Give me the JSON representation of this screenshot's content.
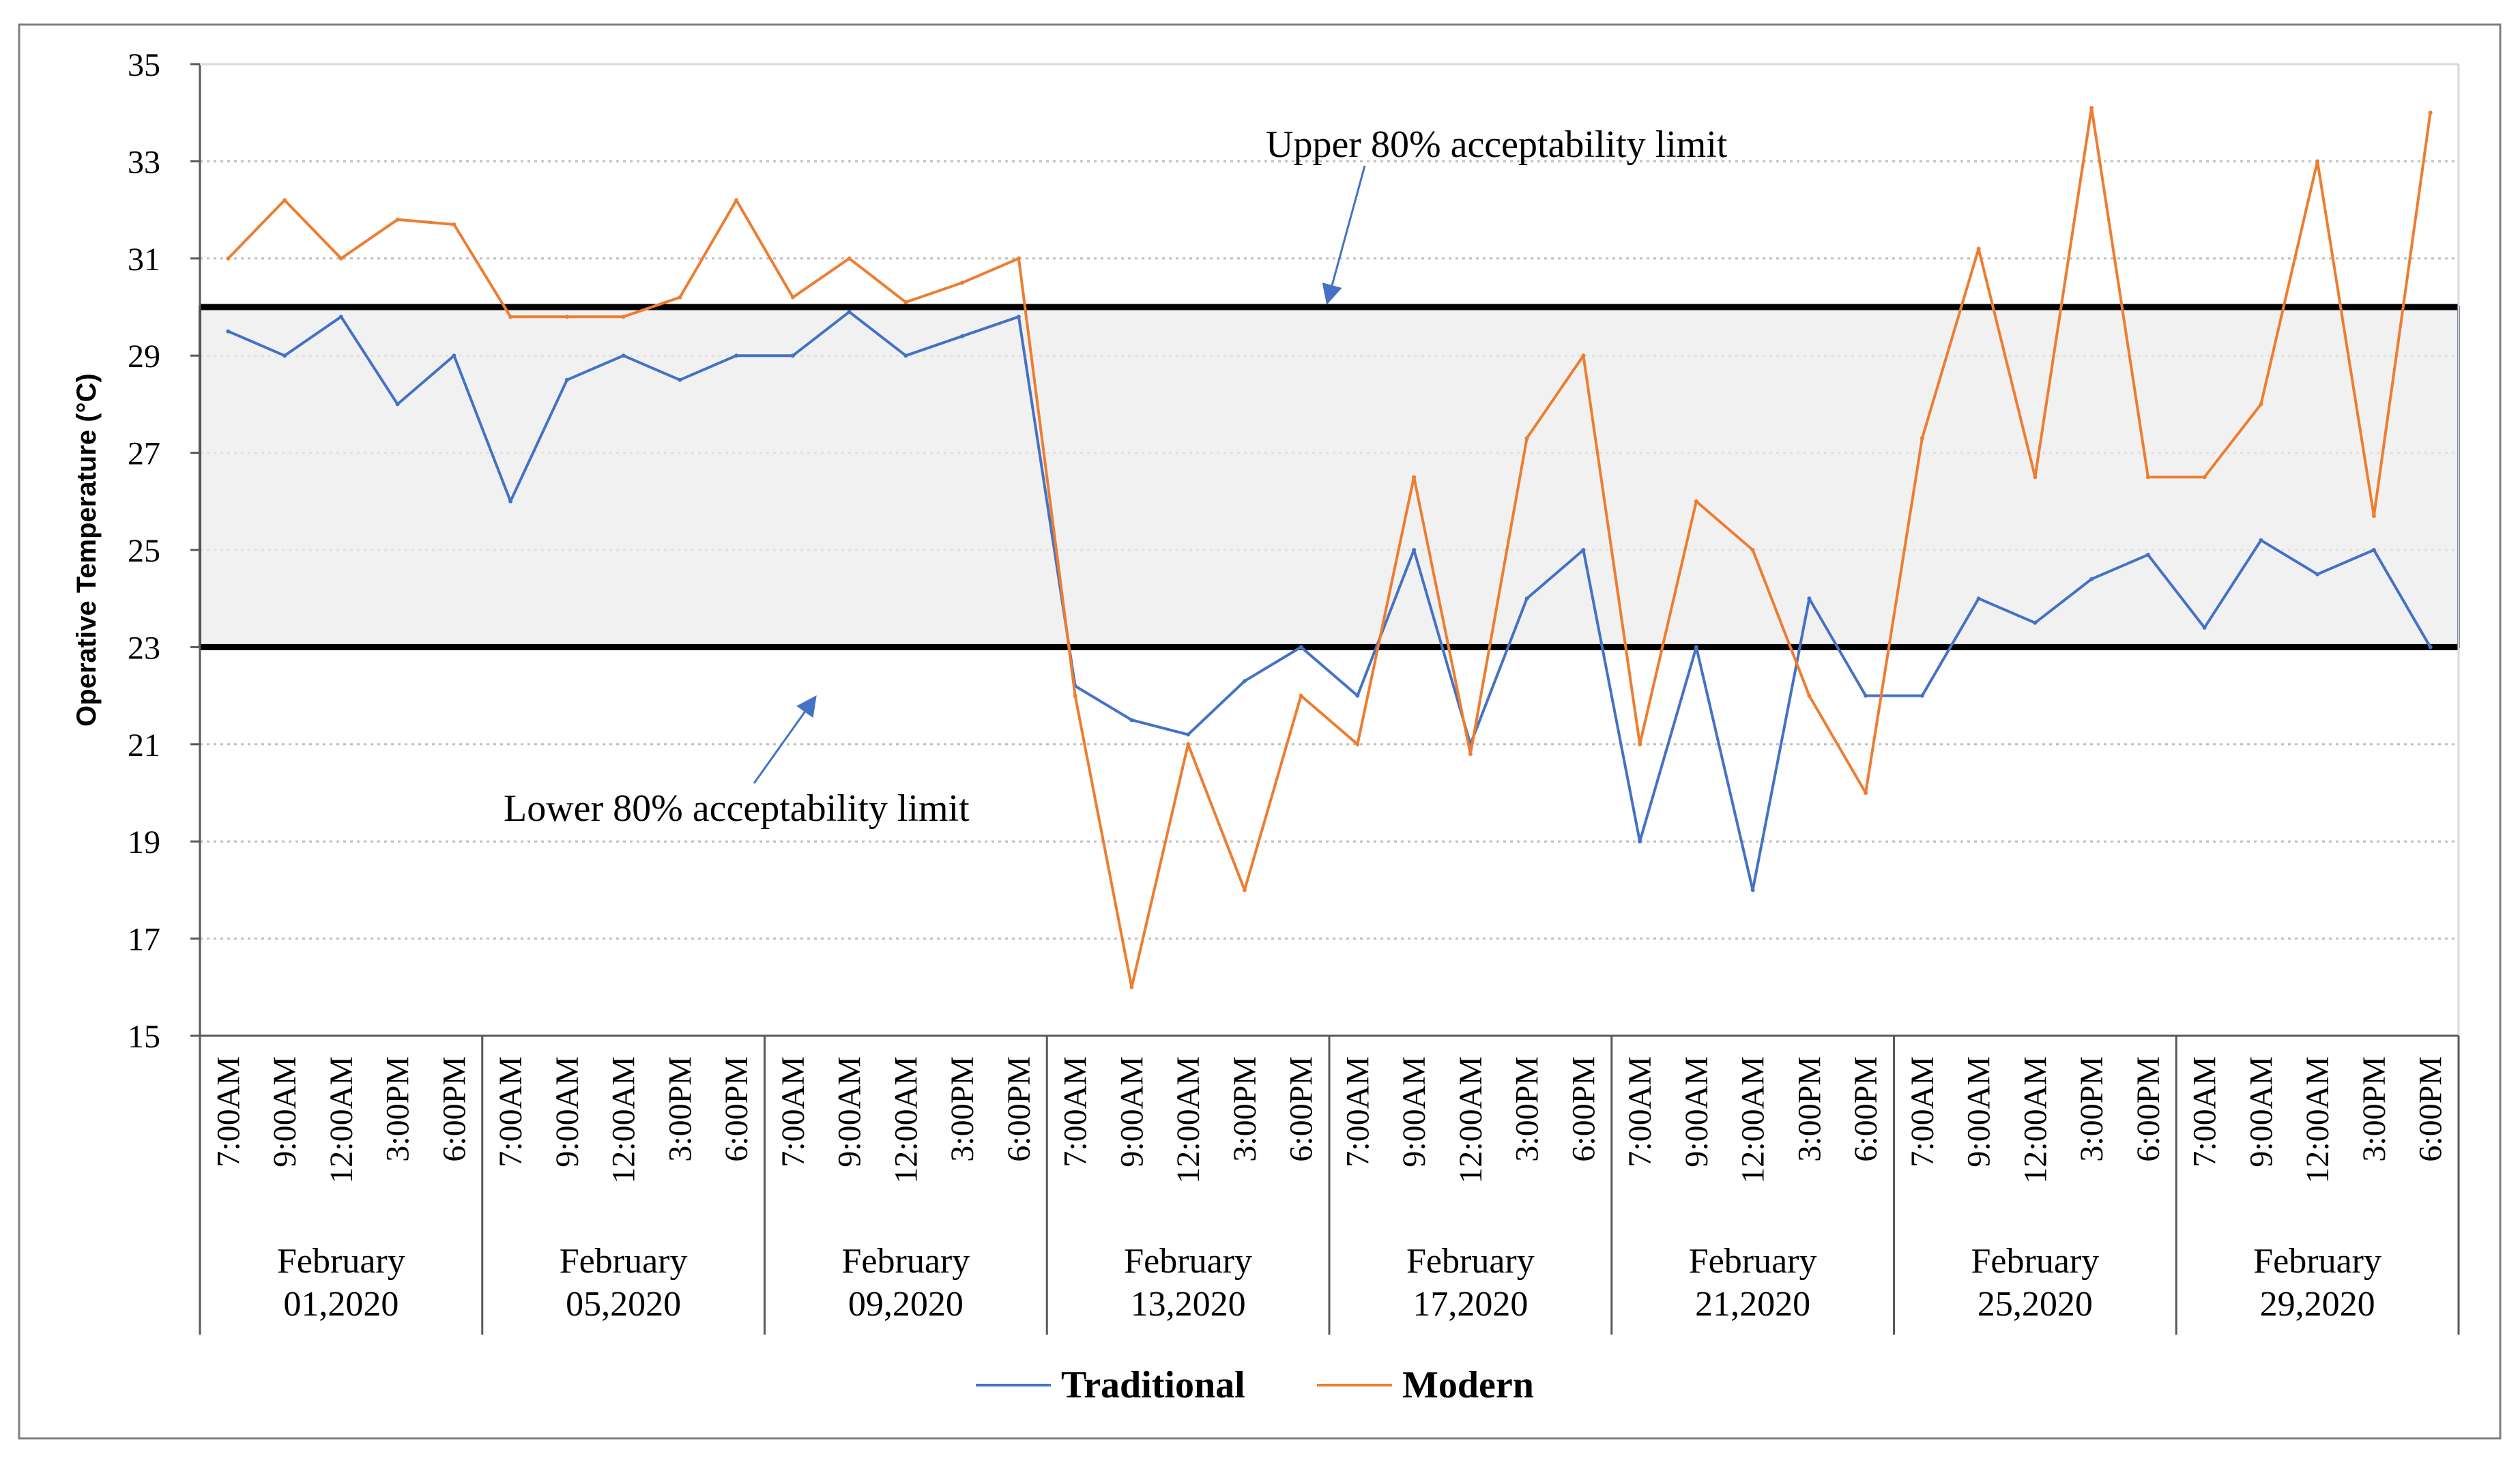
{
  "chart_data": {
    "type": "line",
    "title": "",
    "xlabel": "",
    "ylabel": "Operative Temperature (°C)",
    "ylim": [
      15,
      35
    ],
    "yticks": [
      "15",
      "17",
      "19",
      "21",
      "23",
      "25",
      "27",
      "29",
      "31",
      "33",
      "35"
    ],
    "grid": "horizontal dotted",
    "times": [
      "7:00AM",
      "9:00AM",
      "12:00AM",
      "3:00PM",
      "6:00PM"
    ],
    "groups": [
      {
        "line1": "February",
        "line2": "01,2020"
      },
      {
        "line1": "February",
        "line2": "05,2020"
      },
      {
        "line1": "February",
        "line2": "09,2020"
      },
      {
        "line1": "February",
        "line2": "13,2020"
      },
      {
        "line1": "February",
        "line2": "17,2020"
      },
      {
        "line1": "February",
        "line2": "21,2020"
      },
      {
        "line1": "February",
        "line2": "25,2020"
      },
      {
        "line1": "February",
        "line2": "29,2020"
      }
    ],
    "series": [
      {
        "name": "Traditional",
        "color": "#4472C4",
        "values": [
          29.5,
          29.0,
          29.8,
          28.0,
          29.0,
          26.0,
          28.5,
          29.0,
          28.5,
          29.0,
          29.0,
          29.9,
          29.0,
          29.4,
          29.8,
          22.2,
          21.5,
          21.2,
          22.3,
          23.0,
          22.0,
          25.0,
          21.0,
          24.0,
          25.0,
          19.0,
          23.0,
          18.0,
          24.0,
          22.0,
          22.0,
          24.0,
          23.5,
          24.4,
          24.9,
          23.4,
          25.2,
          24.5,
          25.0,
          23.0
        ]
      },
      {
        "name": "Modern",
        "color": "#ED7D31",
        "values": [
          31.0,
          32.2,
          31.0,
          31.8,
          31.7,
          29.8,
          29.8,
          29.8,
          30.2,
          32.2,
          30.2,
          31.0,
          30.1,
          30.5,
          31.0,
          22.0,
          16.0,
          21.0,
          18.0,
          22.0,
          21.0,
          26.5,
          20.8,
          27.3,
          29.0,
          21.0,
          26.0,
          25.0,
          22.0,
          20.0,
          27.3,
          31.2,
          26.5,
          34.1,
          26.5,
          26.5,
          28.0,
          33.0,
          25.7,
          34.0
        ]
      }
    ],
    "band": {
      "lower": 23,
      "upper": 30
    },
    "annotations": [
      {
        "text": "Upper  80% acceptability  limit",
        "points_to": 30
      },
      {
        "text": "Lower 80% acceptability  limit",
        "points_to": 23
      }
    ],
    "legend_position": "bottom-center"
  }
}
